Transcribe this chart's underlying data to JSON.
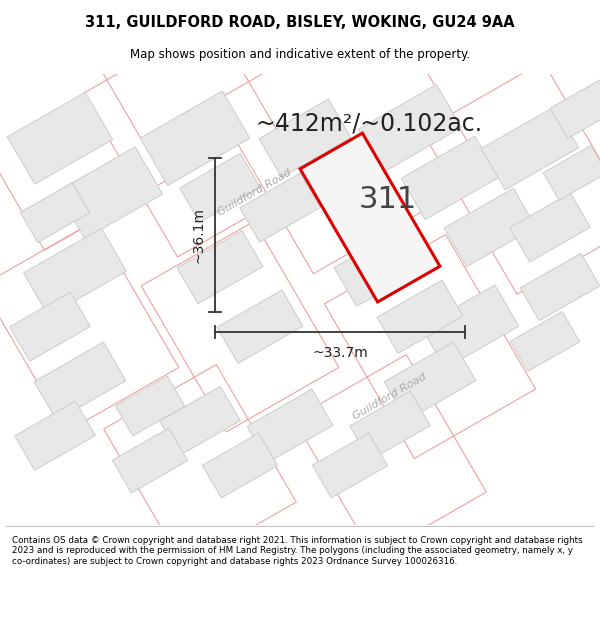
{
  "title_line1": "311, GUILDFORD ROAD, BISLEY, WOKING, GU24 9AA",
  "title_line2": "Map shows position and indicative extent of the property.",
  "area_text": "~412m²/~0.102ac.",
  "label_311": "311",
  "dim_width": "~33.7m",
  "dim_height": "~36.1m",
  "road_label": "Guildford Road",
  "footer": "Contains OS data © Crown copyright and database right 2021. This information is subject to Crown copyright and database rights 2023 and is reproduced with the permission of HM Land Registry. The polygons (including the associated geometry, namely x, y co-ordinates) are subject to Crown copyright and database rights 2023 Ordnance Survey 100026316.",
  "map_bg": "#ffffff",
  "property_edge_color": "#dd0000",
  "property_fill": "#f0f0f0",
  "dim_line_color": "#333333",
  "title_color": "#000000",
  "footer_color": "#000000",
  "road_color": "#aaaaaa",
  "bldg_fill": "#e8e8e8",
  "bldg_edge": "#cccccc",
  "pink_edge": "#f0a0a0",
  "area_fontsize": 18,
  "label_fontsize": 22,
  "dim_fontsize": 10
}
